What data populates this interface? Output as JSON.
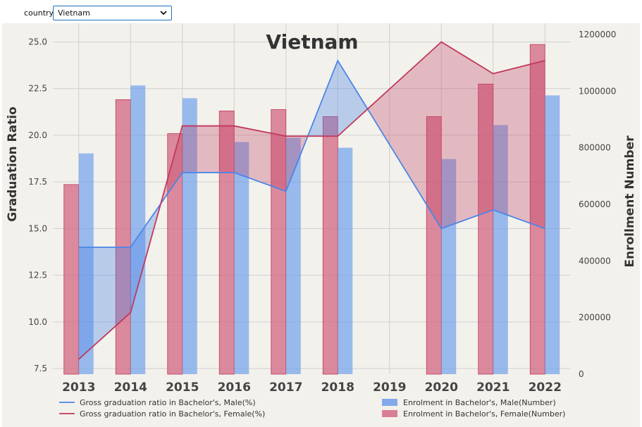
{
  "controls": {
    "label": "country",
    "selected": "Vietnam"
  },
  "colors": {
    "male": "#4a86e8",
    "female": "#c0395c",
    "male_bar": "#6d9eeb",
    "female_bar": "#d36b85",
    "plot_bg": "#f3f1ec",
    "grid": "#d0d0d0"
  },
  "chart_data": {
    "type": "bar+line",
    "title": "Vietnam",
    "ylabel_left": "Graduation Ratio",
    "ylabel_right": "Enrollment Number",
    "categories": [
      "2013",
      "2014",
      "2015",
      "2016",
      "2017",
      "2018",
      "2019",
      "2020",
      "2021",
      "2022"
    ],
    "yticks_left": [
      "7.5",
      "10.0",
      "12.5",
      "15.0",
      "17.5",
      "20.0",
      "22.5",
      "25.0"
    ],
    "yticks_right": [
      "0",
      "200000",
      "400000",
      "600000",
      "800000",
      "1000000",
      "1200000"
    ],
    "ylim_left": [
      7.2,
      26.0
    ],
    "ylim_right": [
      0,
      1200000
    ],
    "grid": true,
    "lines": [
      {
        "name": "Gross graduation ratio in Bachelor's, Male(%)",
        "values": [
          14.0,
          14.0,
          18.0,
          18.0,
          17.0,
          24.0,
          null,
          15.0,
          16.0,
          15.0
        ]
      },
      {
        "name": "Gross graduation ratio in Bachelor's, Female(%)",
        "values": [
          8.0,
          10.5,
          20.5,
          20.5,
          19.95,
          19.95,
          null,
          25.0,
          23.3,
          24.0
        ]
      }
    ],
    "bars": [
      {
        "name": "Enrolment in Bachelor's, Male(Number)",
        "values": [
          780000,
          1020000,
          975000,
          820000,
          835000,
          800000,
          null,
          760000,
          880000,
          985000
        ]
      },
      {
        "name": "Enrolment in Bachelor's, Female(Number)",
        "values": [
          670000,
          970000,
          850000,
          930000,
          935000,
          910000,
          null,
          910000,
          1025000,
          1165000
        ]
      }
    ],
    "legend_placement": "bottom"
  }
}
